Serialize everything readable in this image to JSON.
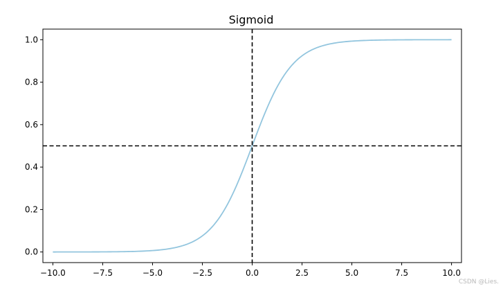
{
  "chart_data": {
    "type": "line",
    "title": "Sigmoid",
    "xlabel": "",
    "ylabel": "",
    "xlim": [
      -10.5,
      10.5
    ],
    "ylim": [
      -0.05,
      1.05
    ],
    "x_ticks": [
      -10.0,
      -7.5,
      -5.0,
      -2.5,
      0.0,
      2.5,
      5.0,
      7.5,
      10.0
    ],
    "x_tick_labels": [
      "−10.0",
      "−7.5",
      "−5.0",
      "−2.5",
      "0.0",
      "2.5",
      "5.0",
      "7.5",
      "10.0"
    ],
    "y_ticks": [
      0.0,
      0.2,
      0.4,
      0.6,
      0.8,
      1.0
    ],
    "y_tick_labels": [
      "0.0",
      "0.2",
      "0.4",
      "0.6",
      "0.8",
      "1.0"
    ],
    "grid": false,
    "series": [
      {
        "color": "#92c5de",
        "x": [
          -10,
          -9,
          -8,
          -7,
          -6,
          -5,
          -4,
          -3,
          -2.5,
          -2,
          -1.5,
          -1,
          -0.5,
          0,
          0.5,
          1,
          1.5,
          2,
          2.5,
          3,
          4,
          5,
          6,
          7,
          8,
          9,
          10
        ],
        "y": [
          4.54e-05,
          0.000123,
          0.000335,
          0.000911,
          0.00247,
          0.00669,
          0.018,
          0.0474,
          0.0759,
          0.1192,
          0.1824,
          0.2689,
          0.3775,
          0.5,
          0.6225,
          0.7311,
          0.8176,
          0.8808,
          0.9241,
          0.9526,
          0.982,
          0.9933,
          0.9975,
          0.9991,
          0.99966,
          0.99988,
          0.99995
        ]
      }
    ],
    "reference_lines": [
      {
        "orientation": "vertical",
        "value": 0.0,
        "style": "dashed",
        "color": "#000000"
      },
      {
        "orientation": "horizontal",
        "value": 0.5,
        "style": "dashed",
        "color": "#000000"
      }
    ]
  },
  "watermark": "CSDN @Lies."
}
